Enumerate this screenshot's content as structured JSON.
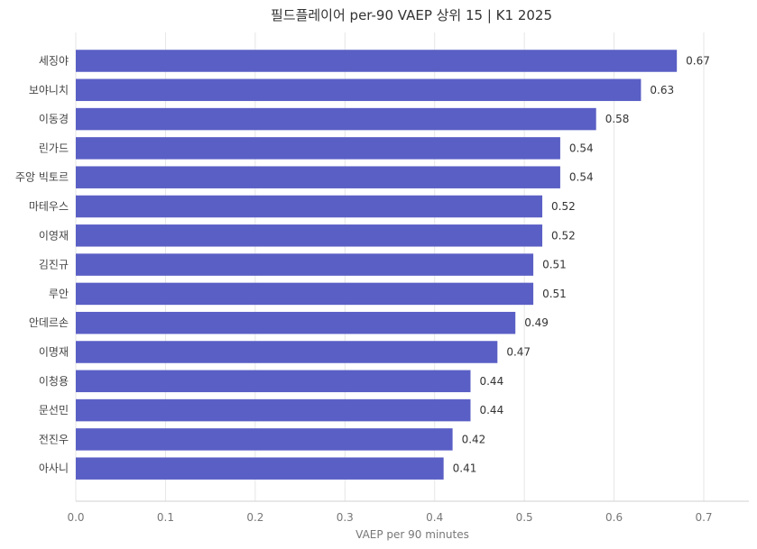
{
  "chart_data": {
    "type": "bar",
    "orientation": "horizontal",
    "title": "필드플레이어 per-90 VAEP 상위 15 | K1 2025",
    "xlabel": "VAEP per 90 minutes",
    "ylabel": "",
    "xlim": [
      0,
      0.75
    ],
    "x_ticks": [
      "0.0",
      "0.1",
      "0.2",
      "0.3",
      "0.4",
      "0.5",
      "0.6",
      "0.7"
    ],
    "grid": "vertical",
    "bar_color": "#5a5fc5",
    "categories": [
      "세징야",
      "보야니치",
      "이동경",
      "린가드",
      "주앙 빅토르",
      "마테우스",
      "이영재",
      "김진규",
      "루안",
      "안데르손",
      "이명재",
      "이청용",
      "문선민",
      "전진우",
      "아사니"
    ],
    "values": [
      0.67,
      0.63,
      0.58,
      0.54,
      0.54,
      0.52,
      0.52,
      0.51,
      0.51,
      0.49,
      0.47,
      0.44,
      0.44,
      0.42,
      0.41
    ],
    "value_labels": [
      "0.67",
      "0.63",
      "0.58",
      "0.54",
      "0.54",
      "0.52",
      "0.52",
      "0.51",
      "0.51",
      "0.49",
      "0.47",
      "0.44",
      "0.44",
      "0.42",
      "0.41"
    ]
  }
}
